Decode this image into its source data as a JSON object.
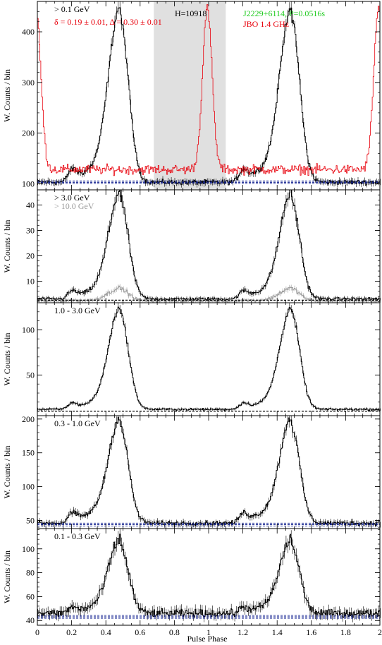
{
  "figure": {
    "xlabel": "Pulse Phase",
    "ylabel": "W. Counts / bin",
    "colors": {
      "axis": "#000000",
      "gamma": "#000000",
      "radio": "#e8000b",
      "fit": "#0a1a8c",
      "highenergy": "#9a9a9a",
      "offpulse": "#e0e0e0",
      "source": "#22cc22"
    }
  },
  "chart_data": [
    {
      "type": "line",
      "panel": "top",
      "ylabel": "W. Counts / bin",
      "xlim": [
        0,
        2
      ],
      "ylim": [
        88,
        460
      ],
      "yticks": [
        100,
        200,
        300,
        400
      ],
      "offpulse_band": [
        0.68,
        1.1
      ],
      "labels": {
        "energy": "> 0.1 GeV",
        "params": "δ = 0.19 ± 0.01, Δ = 0.30 ± 0.01",
        "htest": "H=10918",
        "source": "J2229+6114, P=0.0516s",
        "radio": "JBO 1.4 GHz"
      },
      "background_level": 103,
      "series": [
        {
          "name": "> 0.1 GeV",
          "color": "#000000",
          "peak_phase": [
            0.48,
            1.48
          ],
          "peak_value": 425,
          "base": 103,
          "shoulder": 175
        },
        {
          "name": "JBO 1.4 GHz",
          "color": "#e8000b",
          "peak_phase": [
            0.0,
            0.99,
            2.0
          ],
          "peak_value": 445,
          "base": 128
        }
      ]
    },
    {
      "type": "line",
      "panel": "> 3.0 GeV",
      "ylabel": "W. Counts / bin",
      "xlim": [
        0,
        2
      ],
      "ylim": [
        1.5,
        46
      ],
      "yticks": [
        10,
        20,
        30,
        40
      ],
      "labels": {
        "energy": "> 3.0 GeV",
        "energy2": "> 10.0 GeV"
      },
      "background_level": 2.5,
      "series": [
        {
          "name": "> 3.0 GeV",
          "color": "#000000",
          "peak_phase": [
            0.48,
            1.48
          ],
          "peak_value": 42,
          "base": 3,
          "shoulder": 12
        },
        {
          "name": "> 10.0 GeV",
          "color": "#9a9a9a",
          "peak_phase": [
            0.48,
            1.48
          ],
          "peak_value": 7,
          "base": 2.2,
          "shoulder": 3
        }
      ]
    },
    {
      "type": "line",
      "panel": "1.0 - 3.0 GeV",
      "ylabel": "W. Counts / bin",
      "xlim": [
        0,
        2
      ],
      "ylim": [
        5,
        130
      ],
      "yticks": [
        50,
        100
      ],
      "labels": {
        "energy": "1.0 - 3.0 GeV"
      },
      "background_level": 10,
      "series": [
        {
          "name": "1.0 - 3.0 GeV",
          "color": "#000000",
          "peak_phase": [
            0.48,
            1.48
          ],
          "peak_value": 118,
          "base": 12,
          "shoulder": 32
        }
      ]
    },
    {
      "type": "line",
      "panel": "0.3 - 1.0 GeV",
      "ylabel": "W. Counts / bin",
      "xlim": [
        0,
        2
      ],
      "ylim": [
        38,
        205
      ],
      "yticks": [
        50,
        100,
        150,
        200
      ],
      "labels": {
        "energy": "0.3 - 1.0 GeV"
      },
      "background_level": 44,
      "series": [
        {
          "name": "0.3 - 1.0 GeV",
          "color": "#000000",
          "peak_phase": [
            0.48,
            1.48
          ],
          "peak_value": 188,
          "base": 46,
          "shoulder": 88
        }
      ]
    },
    {
      "type": "line",
      "panel": "0.1 - 0.3 GeV",
      "ylabel": "W. Counts / bin",
      "xlim": [
        0,
        2
      ],
      "ylim": [
        36,
        117
      ],
      "yticks": [
        40,
        60,
        80,
        100
      ],
      "xticks": [
        0,
        0.2,
        0.4,
        0.6,
        0.8,
        1,
        1.2,
        1.4,
        1.6,
        1.8,
        2
      ],
      "labels": {
        "energy": "0.1 - 0.3 GeV"
      },
      "background_level": 43,
      "series": [
        {
          "name": "0.1 - 0.3 GeV",
          "color": "#000000",
          "peak_phase": [
            0.48,
            1.48
          ],
          "peak_value": 103,
          "base": 46,
          "shoulder": 60
        }
      ]
    }
  ]
}
